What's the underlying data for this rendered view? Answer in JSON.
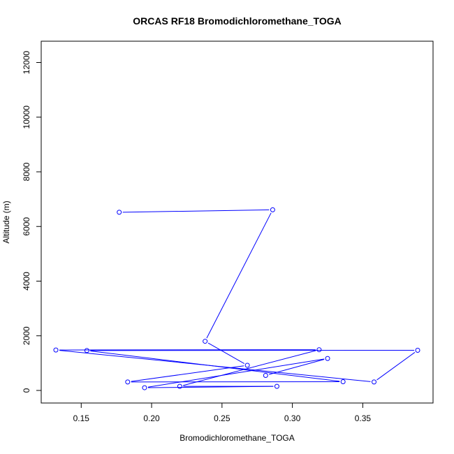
{
  "chart_data": {
    "type": "line",
    "title": "ORCAS RF18 Bromodichloromethane_TOGA",
    "xlabel": "Bromodichloromethane_TOGA",
    "ylabel": "Altitude (m)",
    "xlim": [
      0.13,
      0.39
    ],
    "ylim": [
      0,
      12500
    ],
    "x_ticks": [
      0.15,
      0.2,
      0.25,
      0.3,
      0.35
    ],
    "x_tick_labels": [
      "0.15",
      "0.20",
      "0.25",
      "0.30",
      "0.35"
    ],
    "y_ticks": [
      0,
      2000,
      4000,
      6000,
      8000,
      10000,
      12000
    ],
    "y_tick_labels": [
      "0",
      "2000",
      "4000",
      "6000",
      "8000",
      "10000",
      "12000"
    ],
    "grid": false,
    "series": [
      {
        "color": "#0000ff",
        "marker": "open-circle",
        "points": [
          {
            "x": 0.177,
            "y": 6520
          },
          {
            "x": 0.286,
            "y": 6610
          },
          {
            "x": 0.238,
            "y": 1800
          },
          {
            "x": 0.268,
            "y": 920
          },
          {
            "x": 0.183,
            "y": 310
          },
          {
            "x": 0.336,
            "y": 320
          },
          {
            "x": 0.154,
            "y": 1460
          },
          {
            "x": 0.389,
            "y": 1470
          },
          {
            "x": 0.358,
            "y": 310
          },
          {
            "x": 0.132,
            "y": 1480
          },
          {
            "x": 0.319,
            "y": 1490
          },
          {
            "x": 0.22,
            "y": 150
          },
          {
            "x": 0.289,
            "y": 150
          },
          {
            "x": 0.195,
            "y": 100
          },
          {
            "x": 0.325,
            "y": 1170
          },
          {
            "x": 0.281,
            "y": 550
          }
        ]
      }
    ]
  }
}
